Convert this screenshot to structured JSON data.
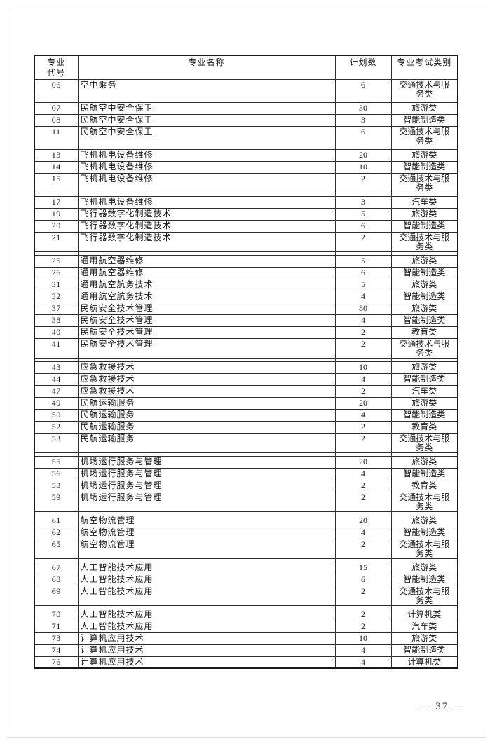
{
  "page": {
    "number": "37",
    "number_label": "— 37 —"
  },
  "table": {
    "headers": [
      {
        "id": "code",
        "lines": [
          "专业",
          "代号"
        ]
      },
      {
        "id": "name",
        "lines": [
          "专业名称"
        ]
      },
      {
        "id": "plan",
        "lines": [
          "计划数"
        ]
      },
      {
        "id": "category",
        "lines": [
          "专业考试类别"
        ]
      }
    ],
    "groups": [
      {
        "rows": [
          {
            "code": "06",
            "name": "空中乘务",
            "plan": "6",
            "category": "交通技术与服务类"
          }
        ]
      },
      {
        "rows": [
          {
            "code": "07",
            "name": "民航空中安全保卫",
            "plan": "30",
            "category": "旅游类"
          },
          {
            "code": "08",
            "name": "民航空中安全保卫",
            "plan": "3",
            "category": "智能制造类"
          },
          {
            "code": "11",
            "name": "民航空中安全保卫",
            "plan": "6",
            "category": "交通技术与服务类"
          }
        ]
      },
      {
        "rows": [
          {
            "code": "13",
            "name": "飞机机电设备维修",
            "plan": "20",
            "category": "旅游类"
          },
          {
            "code": "14",
            "name": "飞机机电设备维修",
            "plan": "10",
            "category": "智能制造类"
          },
          {
            "code": "15",
            "name": "飞机机电设备维修",
            "plan": "2",
            "category": "交通技术与服务类"
          }
        ]
      },
      {
        "rows": [
          {
            "code": "17",
            "name": "飞机机电设备维修",
            "plan": "3",
            "category": "汽车类"
          },
          {
            "code": "19",
            "name": "飞行器数字化制造技术",
            "plan": "5",
            "category": "旅游类"
          },
          {
            "code": "20",
            "name": "飞行器数字化制造技术",
            "plan": "6",
            "category": "智能制造类"
          },
          {
            "code": "21",
            "name": "飞行器数字化制造技术",
            "plan": "2",
            "category": "交通技术与服务类"
          }
        ]
      },
      {
        "rows": [
          {
            "code": "25",
            "name": "通用航空器维修",
            "plan": "5",
            "category": "旅游类"
          },
          {
            "code": "26",
            "name": "通用航空器维修",
            "plan": "6",
            "category": "智能制造类"
          },
          {
            "code": "31",
            "name": "通用航空航务技术",
            "plan": "5",
            "category": "旅游类"
          },
          {
            "code": "32",
            "name": "通用航空航务技术",
            "plan": "4",
            "category": "智能制造类"
          },
          {
            "code": "37",
            "name": "民航安全技术管理",
            "plan": "80",
            "category": "旅游类"
          },
          {
            "code": "38",
            "name": "民航安全技术管理",
            "plan": "4",
            "category": "智能制造类"
          },
          {
            "code": "40",
            "name": "民航安全技术管理",
            "plan": "2",
            "category": "教育类"
          },
          {
            "code": "41",
            "name": "民航安全技术管理",
            "plan": "2",
            "category": "交通技术与服务类"
          }
        ]
      },
      {
        "rows": [
          {
            "code": "43",
            "name": "应急救援技术",
            "plan": "10",
            "category": "旅游类"
          },
          {
            "code": "44",
            "name": "应急救援技术",
            "plan": "4",
            "category": "智能制造类"
          },
          {
            "code": "47",
            "name": "应急救援技术",
            "plan": "2",
            "category": "汽车类"
          },
          {
            "code": "49",
            "name": "民航运输服务",
            "plan": "20",
            "category": "旅游类"
          },
          {
            "code": "50",
            "name": "民航运输服务",
            "plan": "4",
            "category": "智能制造类"
          },
          {
            "code": "52",
            "name": "民航运输服务",
            "plan": "2",
            "category": "教育类"
          },
          {
            "code": "53",
            "name": "民航运输服务",
            "plan": "2",
            "category": "交通技术与服务类"
          }
        ]
      },
      {
        "rows": [
          {
            "code": "55",
            "name": "机场运行服务与管理",
            "plan": "20",
            "category": "旅游类"
          },
          {
            "code": "56",
            "name": "机场运行服务与管理",
            "plan": "4",
            "category": "智能制造类"
          },
          {
            "code": "58",
            "name": "机场运行服务与管理",
            "plan": "2",
            "category": "教育类"
          },
          {
            "code": "59",
            "name": "机场运行服务与管理",
            "plan": "2",
            "category": "交通技术与服务类"
          }
        ]
      },
      {
        "rows": [
          {
            "code": "61",
            "name": "航空物流管理",
            "plan": "20",
            "category": "旅游类"
          },
          {
            "code": "62",
            "name": "航空物流管理",
            "plan": "4",
            "category": "智能制造类"
          },
          {
            "code": "65",
            "name": "航空物流管理",
            "plan": "2",
            "category": "交通技术与服务类"
          }
        ]
      },
      {
        "rows": [
          {
            "code": "67",
            "name": "人工智能技术应用",
            "plan": "15",
            "category": "旅游类"
          },
          {
            "code": "68",
            "name": "人工智能技术应用",
            "plan": "6",
            "category": "智能制造类"
          },
          {
            "code": "69",
            "name": "人工智能技术应用",
            "plan": "2",
            "category": "交通技术与服务类"
          }
        ]
      },
      {
        "rows": [
          {
            "code": "70",
            "name": "人工智能技术应用",
            "plan": "2",
            "category": "计算机类"
          },
          {
            "code": "71",
            "name": "人工智能技术应用",
            "plan": "2",
            "category": "汽车类"
          },
          {
            "code": "73",
            "name": "计算机应用技术",
            "plan": "10",
            "category": "旅游类"
          },
          {
            "code": "74",
            "name": "计算机应用技术",
            "plan": "4",
            "category": "智能制造类"
          },
          {
            "code": "76",
            "name": "计算机应用技术",
            "plan": "4",
            "category": "计算机类"
          }
        ]
      }
    ]
  }
}
